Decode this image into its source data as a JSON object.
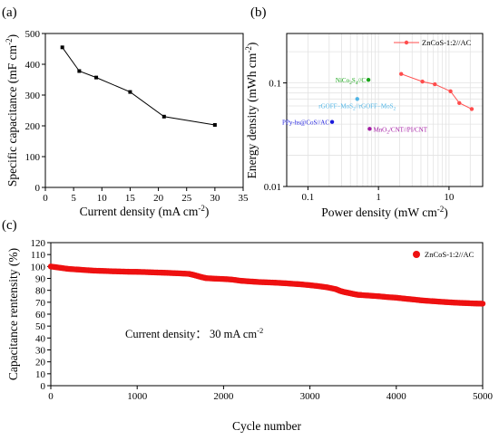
{
  "chart_data": [
    {
      "panel": "(a)",
      "type": "line",
      "xlabel": "Current density (mA cm",
      "xlabel_sup": "-2",
      "xlabel_end": ")",
      "ylabel": "Specific capacitance (mF cm",
      "ylabel_sup": "-2",
      "ylabel_end": ")",
      "xlim": [
        0,
        35
      ],
      "ylim": [
        0,
        500
      ],
      "xticks": [
        0,
        5,
        10,
        15,
        20,
        25,
        30,
        35
      ],
      "yticks": [
        0,
        100,
        200,
        300,
        400,
        500
      ],
      "grid": false,
      "series": [
        {
          "x": [
            3,
            6,
            9,
            15,
            21,
            30
          ],
          "y": [
            455,
            378,
            357,
            310,
            230,
            203
          ],
          "color": "#000000",
          "marker": "square"
        }
      ]
    },
    {
      "panel": "(b)",
      "type": "scatter",
      "xscale": "log",
      "yscale": "log",
      "xlabel": "Power density (mW cm",
      "xlabel_sup": "-2",
      "xlabel_end": ")",
      "ylabel": "Energy density (mWh cm",
      "ylabel_sup": "-2",
      "ylabel_end": ")",
      "xlim": [
        0.05,
        30
      ],
      "ylim": [
        0.01,
        0.3
      ],
      "xticks": [
        0.1,
        1,
        10
      ],
      "xtick_labels": [
        "0.1",
        "1",
        "10"
      ],
      "yticks": [
        0.01,
        0.1
      ],
      "ytick_labels": [
        "0.01",
        "0.1"
      ],
      "grid": true,
      "legend_position": "top-right",
      "series": [
        {
          "name": "ZnCoS-1:2//AC",
          "color": "#ff4d4d",
          "marker": "circle",
          "line": true,
          "x": [
            2.1,
            4.2,
            6.3,
            10.5,
            14,
            21
          ],
          "y": [
            0.122,
            0.103,
            0.097,
            0.083,
            0.064,
            0.056
          ]
        }
      ],
      "references": [
        {
          "name": "NiCo",
          "sub1": "2",
          "mid": "S",
          "sub2": "4",
          "end": "//C",
          "color": "#1aa51a",
          "x": 0.72,
          "y": 0.107
        },
        {
          "name": "rGOFF−MoS",
          "sub1": "2",
          "mid": "//rGOFF−MoS",
          "sub2": "2",
          "end": "",
          "color": "#4fb5e6",
          "x": 0.5,
          "y": 0.07
        },
        {
          "name": "PPy-hs@CoS//AC",
          "sub1": "",
          "mid": "",
          "sub2": "",
          "end": "",
          "color": "#1a1adc",
          "x": 0.22,
          "y": 0.042
        },
        {
          "name": "MnO",
          "sub1": "2",
          "mid": "/CNT//PI/CNT",
          "sub2": "",
          "end": "",
          "color": "#a31aa3",
          "x": 0.75,
          "y": 0.036
        }
      ]
    },
    {
      "panel": "(c)",
      "type": "scatter",
      "xlabel": "Cycle number",
      "ylabel": "Capacitance rentensity (%)",
      "xlim": [
        0,
        5000
      ],
      "ylim": [
        0,
        120
      ],
      "xticks": [
        0,
        1000,
        2000,
        3000,
        4000,
        5000
      ],
      "yticks": [
        0,
        10,
        20,
        30,
        40,
        50,
        60,
        70,
        80,
        90,
        100,
        110,
        120
      ],
      "grid": false,
      "legend_position": "top-right",
      "annotation": "Current density： 30 mA cm",
      "annotation_sup": "-2",
      "series": [
        {
          "name": "ZnCoS-1:2//AC",
          "color": "#ee1111",
          "marker": "circle",
          "x": [
            0,
            100,
            200,
            300,
            400,
            500,
            600,
            700,
            800,
            900,
            1000,
            1100,
            1200,
            1300,
            1400,
            1500,
            1600,
            1650,
            1700,
            1750,
            1800,
            1900,
            2000,
            2100,
            2200,
            2300,
            2400,
            2500,
            2600,
            2700,
            2800,
            2900,
            3000,
            3100,
            3200,
            3300,
            3350,
            3400,
            3450,
            3500,
            3550,
            3600,
            3700,
            3800,
            3900,
            4000,
            4100,
            4200,
            4300,
            4400,
            4500,
            4600,
            4700,
            4800,
            4900,
            5000
          ],
          "y": [
            100,
            99,
            98,
            97.5,
            97,
            96.5,
            96.3,
            96,
            95.8,
            95.6,
            95.5,
            95.3,
            95,
            94.8,
            94.5,
            94.2,
            93.8,
            93,
            92,
            91,
            90.2,
            89.8,
            89.5,
            89,
            88,
            87.5,
            87,
            86.7,
            86.4,
            86,
            85.5,
            85,
            84.3,
            83.5,
            82.5,
            81,
            79.5,
            78.5,
            77.8,
            77,
            76.3,
            76,
            75.5,
            75,
            74.3,
            73.8,
            73,
            72.3,
            71.5,
            71,
            70.5,
            70,
            69.6,
            69.3,
            69,
            68.8
          ]
        }
      ]
    }
  ]
}
